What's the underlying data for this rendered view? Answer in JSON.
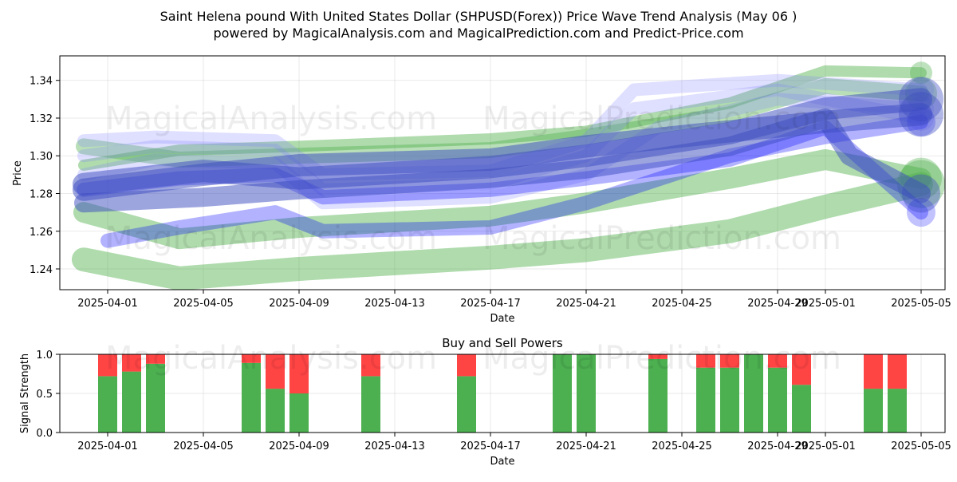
{
  "page": {
    "title_line1": "Saint Helena pound With United States Dollar (SHPUSD(Forex)) Price Wave Trend Analysis (May 06 )",
    "title_line2": "powered by MagicalAnalysis.com and MagicalPrediction.com and Predict-Price.com"
  },
  "watermarks": [
    "MagicalAnalysis.com",
    "MagicalPrediction.com"
  ],
  "colors": {
    "green_band": "#4daf4a",
    "blue_band": "#0000ff",
    "dark_blue_band": "#3b4cc0",
    "buy": "#4caf50",
    "sell": "#ff4444"
  },
  "chart_data": [
    {
      "type": "area",
      "name": "price-wave-chart",
      "xlabel": "Date",
      "ylabel": "Price",
      "x_range": [
        "2025-03-30",
        "2025-05-06"
      ],
      "y_range": [
        1.229,
        1.353
      ],
      "grid": true,
      "x_ticks": [
        "2025-04-01",
        "2025-04-05",
        "2025-04-09",
        "2025-04-13",
        "2025-04-17",
        "2025-04-21",
        "2025-04-25",
        "2025-04-29",
        "2025-05-01",
        "2025-05-05"
      ],
      "y_ticks": [
        1.24,
        1.26,
        1.28,
        1.3,
        1.32,
        1.34
      ],
      "y_tick_labels": [
        "1.24",
        "1.26",
        "1.28",
        "1.30",
        "1.32",
        "1.34"
      ],
      "series": [
        {
          "color": "green",
          "opacity": 0.45,
          "width": 14,
          "points": [
            [
              "2025-03-31",
              1.295
            ],
            [
              "2025-04-04",
              1.303
            ],
            [
              "2025-04-09",
              1.305
            ],
            [
              "2025-04-17",
              1.309
            ],
            [
              "2025-04-21",
              1.313
            ],
            [
              "2025-04-27",
              1.328
            ],
            [
              "2025-05-01",
              1.345
            ],
            [
              "2025-05-05",
              1.344
            ]
          ]
        },
        {
          "color": "green",
          "opacity": 0.45,
          "width": 30,
          "points": [
            [
              "2025-03-31",
              1.245
            ],
            [
              "2025-04-04",
              1.235
            ],
            [
              "2025-04-09",
              1.24
            ],
            [
              "2025-04-17",
              1.246
            ],
            [
              "2025-04-21",
              1.25
            ],
            [
              "2025-04-27",
              1.26
            ],
            [
              "2025-05-01",
              1.273
            ],
            [
              "2025-05-05",
              1.285
            ]
          ]
        },
        {
          "color": "green",
          "opacity": 0.45,
          "width": 26,
          "points": [
            [
              "2025-03-31",
              1.27
            ],
            [
              "2025-04-04",
              1.256
            ],
            [
              "2025-04-09",
              1.262
            ],
            [
              "2025-04-17",
              1.268
            ],
            [
              "2025-04-21",
              1.275
            ],
            [
              "2025-04-27",
              1.288
            ],
            [
              "2025-05-01",
              1.298
            ],
            [
              "2025-05-05",
              1.288
            ]
          ]
        },
        {
          "color": "green",
          "opacity": 0.4,
          "width": 20,
          "points": [
            [
              "2025-03-31",
              1.305
            ],
            [
              "2025-04-04",
              1.298
            ],
            [
              "2025-04-09",
              1.3
            ],
            [
              "2025-04-17",
              1.303
            ],
            [
              "2025-04-21",
              1.31
            ],
            [
              "2025-04-27",
              1.322
            ],
            [
              "2025-05-01",
              1.337
            ],
            [
              "2025-05-05",
              1.333
            ]
          ]
        },
        {
          "color": "lightblue",
          "opacity": 0.25,
          "width": 16,
          "points": [
            [
              "2025-03-31",
              1.308
            ],
            [
              "2025-04-03",
              1.31
            ],
            [
              "2025-04-08",
              1.308
            ],
            [
              "2025-04-10",
              1.29
            ],
            [
              "2025-04-17",
              1.292
            ],
            [
              "2025-04-21",
              1.308
            ],
            [
              "2025-04-23",
              1.335
            ],
            [
              "2025-04-29",
              1.34
            ],
            [
              "2025-05-05",
              1.335
            ]
          ]
        },
        {
          "color": "lightblue",
          "opacity": 0.25,
          "width": 16,
          "points": [
            [
              "2025-03-31",
              1.3
            ],
            [
              "2025-04-03",
              1.305
            ],
            [
              "2025-04-08",
              1.303
            ],
            [
              "2025-04-10",
              1.282
            ],
            [
              "2025-04-17",
              1.285
            ],
            [
              "2025-04-21",
              1.3
            ],
            [
              "2025-04-23",
              1.325
            ],
            [
              "2025-04-29",
              1.335
            ],
            [
              "2025-05-05",
              1.32
            ]
          ]
        },
        {
          "color": "lightblue",
          "opacity": 0.25,
          "width": 16,
          "points": [
            [
              "2025-03-31",
              1.29
            ],
            [
              "2025-04-03",
              1.298
            ],
            [
              "2025-04-08",
              1.296
            ],
            [
              "2025-04-10",
              1.275
            ],
            [
              "2025-04-17",
              1.278
            ],
            [
              "2025-04-21",
              1.29
            ],
            [
              "2025-04-24",
              1.315
            ],
            [
              "2025-04-29",
              1.33
            ],
            [
              "2025-05-05",
              1.325
            ]
          ]
        },
        {
          "color": "blue",
          "opacity": 0.3,
          "width": 18,
          "points": [
            [
              "2025-03-31",
              1.282
            ],
            [
              "2025-04-04",
              1.288
            ],
            [
              "2025-04-08",
              1.29
            ],
            [
              "2025-04-10",
              1.278
            ],
            [
              "2025-04-17",
              1.282
            ],
            [
              "2025-04-21",
              1.288
            ],
            [
              "2025-04-27",
              1.298
            ],
            [
              "2025-05-01",
              1.315
            ],
            [
              "2025-05-05",
              1.27
            ]
          ]
        },
        {
          "color": "blue",
          "opacity": 0.3,
          "width": 18,
          "points": [
            [
              "2025-04-01",
              1.255
            ],
            [
              "2025-04-04",
              1.262
            ],
            [
              "2025-04-08",
              1.27
            ],
            [
              "2025-04-10",
              1.26
            ],
            [
              "2025-04-17",
              1.262
            ],
            [
              "2025-04-21",
              1.275
            ],
            [
              "2025-04-27",
              1.3
            ],
            [
              "2025-05-01",
              1.31
            ],
            [
              "2025-05-05",
              1.318
            ]
          ]
        },
        {
          "color": "darkblue",
          "opacity": 0.5,
          "width": 28,
          "points": [
            [
              "2025-03-31",
              1.285
            ],
            [
              "2025-04-05",
              1.292
            ],
            [
              "2025-04-09",
              1.288
            ],
            [
              "2025-04-17",
              1.294
            ],
            [
              "2025-04-21",
              1.3
            ],
            [
              "2025-04-27",
              1.312
            ],
            [
              "2025-05-01",
              1.325
            ],
            [
              "2025-05-05",
              1.33
            ]
          ]
        },
        {
          "color": "darkblue",
          "opacity": 0.5,
          "width": 28,
          "points": [
            [
              "2025-03-31",
              1.282
            ],
            [
              "2025-04-05",
              1.29
            ],
            [
              "2025-04-09",
              1.295
            ],
            [
              "2025-04-17",
              1.298
            ],
            [
              "2025-04-21",
              1.305
            ],
            [
              "2025-04-27",
              1.313
            ],
            [
              "2025-05-01",
              1.318
            ],
            [
              "2025-05-05",
              1.322
            ]
          ]
        },
        {
          "color": "darkblue",
          "opacity": 0.5,
          "width": 24,
          "points": [
            [
              "2025-03-31",
              1.275
            ],
            [
              "2025-04-05",
              1.278
            ],
            [
              "2025-04-09",
              1.282
            ],
            [
              "2025-04-17",
              1.288
            ],
            [
              "2025-04-21",
              1.293
            ],
            [
              "2025-04-27",
              1.305
            ],
            [
              "2025-05-01",
              1.32
            ],
            [
              "2025-05-02",
              1.3
            ],
            [
              "2025-05-05",
              1.28
            ]
          ]
        }
      ]
    },
    {
      "type": "bar",
      "name": "buy-sell-powers-chart",
      "title": "Buy and Sell Powers",
      "xlabel": "Date",
      "ylabel": "Signal Strength",
      "x_range": [
        "2025-03-30",
        "2025-05-06"
      ],
      "ylim": [
        0,
        1
      ],
      "grid": true,
      "x_ticks": [
        "2025-04-01",
        "2025-04-05",
        "2025-04-09",
        "2025-04-13",
        "2025-04-17",
        "2025-04-21",
        "2025-04-25",
        "2025-04-29",
        "2025-05-01",
        "2025-05-05"
      ],
      "y_ticks": [
        0,
        0.5,
        1
      ],
      "y_tick_labels": [
        "0.0",
        "0.5",
        "1.0"
      ],
      "bars": [
        {
          "date": "2025-04-01",
          "buy": 0.72,
          "sell": 0.28
        },
        {
          "date": "2025-04-02",
          "buy": 0.78,
          "sell": 0.22
        },
        {
          "date": "2025-04-03",
          "buy": 0.88,
          "sell": 0.12
        },
        {
          "date": "2025-04-07",
          "buy": 0.89,
          "sell": 0.11
        },
        {
          "date": "2025-04-08",
          "buy": 0.56,
          "sell": 0.44
        },
        {
          "date": "2025-04-09",
          "buy": 0.5,
          "sell": 0.5
        },
        {
          "date": "2025-04-12",
          "buy": 0.72,
          "sell": 0.28
        },
        {
          "date": "2025-04-16",
          "buy": 0.72,
          "sell": 0.28
        },
        {
          "date": "2025-04-20",
          "buy": 1.0,
          "sell": 0.0
        },
        {
          "date": "2025-04-21",
          "buy": 1.0,
          "sell": 0.0
        },
        {
          "date": "2025-04-24",
          "buy": 0.94,
          "sell": 0.06
        },
        {
          "date": "2025-04-26",
          "buy": 0.83,
          "sell": 0.17
        },
        {
          "date": "2025-04-27",
          "buy": 0.83,
          "sell": 0.17
        },
        {
          "date": "2025-04-28",
          "buy": 1.0,
          "sell": 0.0
        },
        {
          "date": "2025-04-29",
          "buy": 0.83,
          "sell": 0.17
        },
        {
          "date": "2025-04-30",
          "buy": 0.61,
          "sell": 0.39
        },
        {
          "date": "2025-05-03",
          "buy": 0.56,
          "sell": 0.44
        },
        {
          "date": "2025-05-04",
          "buy": 0.56,
          "sell": 0.44
        }
      ]
    }
  ]
}
